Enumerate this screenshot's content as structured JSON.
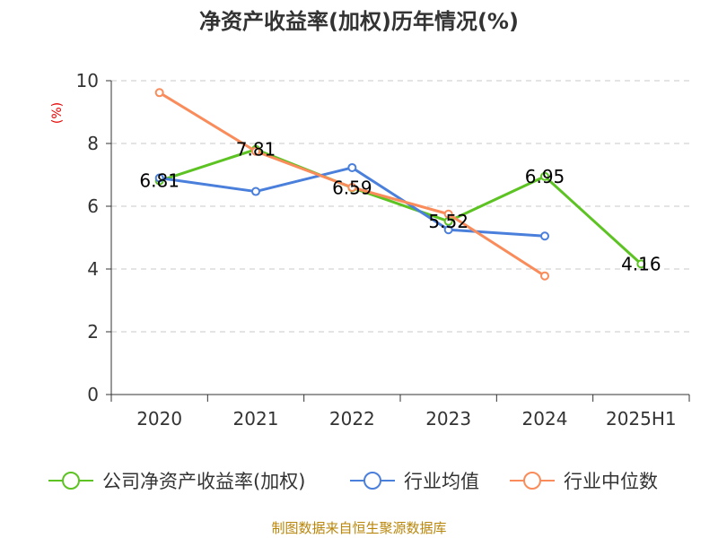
{
  "chart_data": {
    "type": "line",
    "title": "净资产收益率(加权)历年情况(%)",
    "ylabel": "(%)",
    "xlabel": "",
    "ylim": [
      0,
      10
    ],
    "yticks": [
      0,
      2,
      4,
      6,
      8,
      10
    ],
    "categories": [
      "2020",
      "2021",
      "2022",
      "2023",
      "2024",
      "2025H1"
    ],
    "grid": "horizontal-dashed",
    "legend_position": "bottom",
    "series": [
      {
        "name": "公司净资产收益率(加权)",
        "color": "#5cc323",
        "values": [
          6.81,
          7.81,
          6.59,
          5.52,
          6.95,
          4.16
        ],
        "labels": [
          "6.81",
          "7.81",
          "6.59",
          "5.52",
          "6.95",
          "4.16"
        ]
      },
      {
        "name": "行业均值",
        "color": "#4a7fdb",
        "values": [
          6.9,
          6.47,
          7.23,
          5.25,
          5.05,
          null
        ],
        "labels": []
      },
      {
        "name": "行业中位数",
        "color": "#f98c5a",
        "values": [
          9.62,
          7.75,
          6.6,
          5.75,
          3.78,
          null
        ],
        "labels": []
      }
    ]
  },
  "source": "制图数据来自恒生聚源数据库"
}
